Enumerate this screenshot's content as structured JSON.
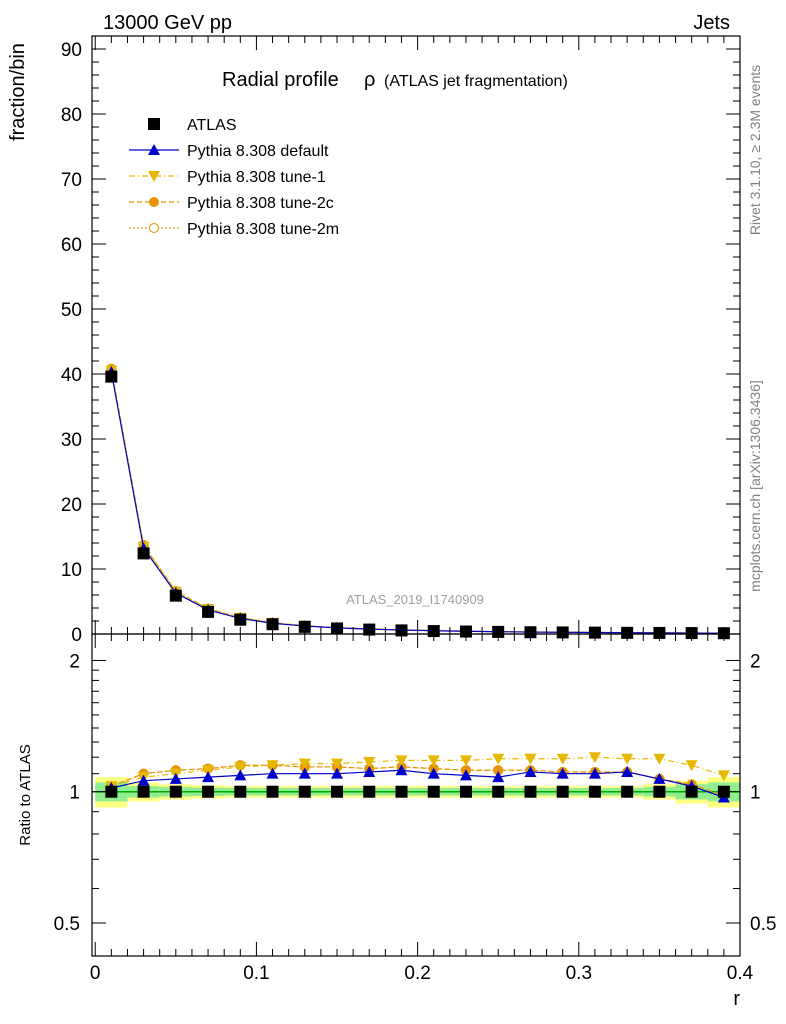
{
  "header": {
    "left": "13000 GeV pp",
    "right": "Jets"
  },
  "title": {
    "main": "Radial profile",
    "symbol": "ρ",
    "sub": "(ATLAS jet fragmentation)"
  },
  "side_labels": {
    "rivet": "Rivet 3.1.10, ≥ 2.3M events",
    "mcplots": "mcplots.cern.ch [arXiv:1306.3436]"
  },
  "watermark": "ATLAS_2019_I1740909",
  "colors": {
    "data": "#000000",
    "default": "#0000cc",
    "tune1": "#e6b800",
    "tune2c": "#e69500",
    "tune2m": "#e6a020",
    "band_green": "#90ee90",
    "band_yellow": "#ffff80",
    "ref_line": "#00aa00"
  },
  "chart_data": [
    {
      "type": "scatter",
      "panel": "main",
      "ylabel": "fraction/bin",
      "ylim": [
        0,
        92
      ],
      "xlim": [
        -0.002,
        0.4
      ],
      "yticks": [
        0,
        10,
        20,
        30,
        40,
        50,
        60,
        70,
        80,
        90
      ],
      "legend_position": "top-left",
      "x": [
        0.01,
        0.03,
        0.05,
        0.07,
        0.09,
        0.11,
        0.13,
        0.15,
        0.17,
        0.19,
        0.21,
        0.23,
        0.25,
        0.27,
        0.29,
        0.31,
        0.33,
        0.35,
        0.37,
        0.39
      ],
      "series": [
        {
          "name": "ATLAS",
          "style": "data",
          "values": [
            39.6,
            12.4,
            5.9,
            3.4,
            2.2,
            1.5,
            1.1,
            0.85,
            0.68,
            0.55,
            0.45,
            0.38,
            0.32,
            0.27,
            0.24,
            0.21,
            0.18,
            0.16,
            0.14,
            0.12
          ]
        },
        {
          "name": "Pythia 8.308 default",
          "style": "default",
          "values": [
            40.3,
            13.2,
            6.3,
            3.7,
            2.4,
            1.65,
            1.22,
            0.94,
            0.75,
            0.62,
            0.5,
            0.42,
            0.35,
            0.3,
            0.265,
            0.23,
            0.2,
            0.17,
            0.145,
            0.115
          ]
        },
        {
          "name": "Pythia 8.308 tune-1",
          "style": "tune1",
          "values": [
            40.5,
            13.4,
            6.5,
            3.85,
            2.5,
            1.72,
            1.28,
            0.98,
            0.79,
            0.65,
            0.53,
            0.45,
            0.38,
            0.32,
            0.285,
            0.25,
            0.215,
            0.19,
            0.16,
            0.13
          ]
        },
        {
          "name": "Pythia 8.308 tune-2c",
          "style": "tune2c",
          "values": [
            40.8,
            13.6,
            6.6,
            3.9,
            2.52,
            1.73,
            1.27,
            0.97,
            0.77,
            0.63,
            0.51,
            0.43,
            0.36,
            0.3,
            0.265,
            0.235,
            0.2,
            0.17,
            0.145,
            0.118
          ]
        },
        {
          "name": "Pythia 8.308 tune-2m",
          "style": "tune2m",
          "values": [
            40.8,
            13.7,
            6.6,
            3.9,
            2.52,
            1.73,
            1.27,
            0.97,
            0.77,
            0.63,
            0.51,
            0.43,
            0.36,
            0.3,
            0.265,
            0.235,
            0.2,
            0.17,
            0.145,
            0.118
          ]
        }
      ]
    },
    {
      "type": "scatter",
      "panel": "ratio",
      "ylabel": "Ratio to ATLAS",
      "xlabel": "r",
      "ylim": [
        0.42,
        2.3
      ],
      "log_scale_y": true,
      "xlim": [
        -0.002,
        0.4
      ],
      "xticks": [
        0,
        0.1,
        0.2,
        0.3,
        0.4
      ],
      "xtick_labels": [
        "0",
        "0.1",
        "0.2",
        "0.3",
        "0.4"
      ],
      "yticks": [
        0.5,
        1,
        2
      ],
      "ytick_labels": [
        "0.5",
        "1",
        "2"
      ],
      "x": [
        0.01,
        0.03,
        0.05,
        0.07,
        0.09,
        0.11,
        0.13,
        0.15,
        0.17,
        0.19,
        0.21,
        0.23,
        0.25,
        0.27,
        0.29,
        0.31,
        0.33,
        0.35,
        0.37,
        0.39
      ],
      "band_inner": [
        0.05,
        0.03,
        0.025,
        0.022,
        0.02,
        0.02,
        0.02,
        0.02,
        0.02,
        0.02,
        0.02,
        0.02,
        0.02,
        0.02,
        0.02,
        0.02,
        0.02,
        0.025,
        0.04,
        0.05
      ],
      "band_outer": [
        0.08,
        0.05,
        0.04,
        0.035,
        0.03,
        0.03,
        0.03,
        0.03,
        0.03,
        0.03,
        0.03,
        0.03,
        0.03,
        0.03,
        0.03,
        0.03,
        0.03,
        0.04,
        0.06,
        0.08
      ],
      "series": [
        {
          "name": "ATLAS",
          "style": "data",
          "values": [
            1,
            1,
            1,
            1,
            1,
            1,
            1,
            1,
            1,
            1,
            1,
            1,
            1,
            1,
            1,
            1,
            1,
            1,
            1,
            1
          ]
        },
        {
          "name": "Pythia 8.308 default",
          "style": "default",
          "values": [
            1.02,
            1.06,
            1.07,
            1.08,
            1.09,
            1.1,
            1.1,
            1.1,
            1.11,
            1.12,
            1.1,
            1.09,
            1.08,
            1.11,
            1.1,
            1.1,
            1.11,
            1.07,
            1.03,
            0.97
          ]
        },
        {
          "name": "Pythia 8.308 tune-1",
          "style": "tune1",
          "values": [
            1.03,
            1.08,
            1.1,
            1.12,
            1.14,
            1.15,
            1.16,
            1.16,
            1.17,
            1.18,
            1.18,
            1.18,
            1.19,
            1.19,
            1.19,
            1.2,
            1.19,
            1.19,
            1.15,
            1.09
          ]
        },
        {
          "name": "Pythia 8.308 tune-2c",
          "style": "tune2c",
          "values": [
            1.03,
            1.1,
            1.12,
            1.13,
            1.15,
            1.15,
            1.14,
            1.14,
            1.13,
            1.14,
            1.13,
            1.12,
            1.12,
            1.12,
            1.11,
            1.11,
            1.11,
            1.07,
            1.04,
            0.98
          ]
        },
        {
          "name": "Pythia 8.308 tune-2m",
          "style": "tune2m",
          "values": [
            1.03,
            1.1,
            1.12,
            1.13,
            1.15,
            1.15,
            1.14,
            1.14,
            1.13,
            1.14,
            1.13,
            1.12,
            1.12,
            1.12,
            1.11,
            1.11,
            1.11,
            1.07,
            1.04,
            0.98
          ]
        }
      ]
    }
  ]
}
